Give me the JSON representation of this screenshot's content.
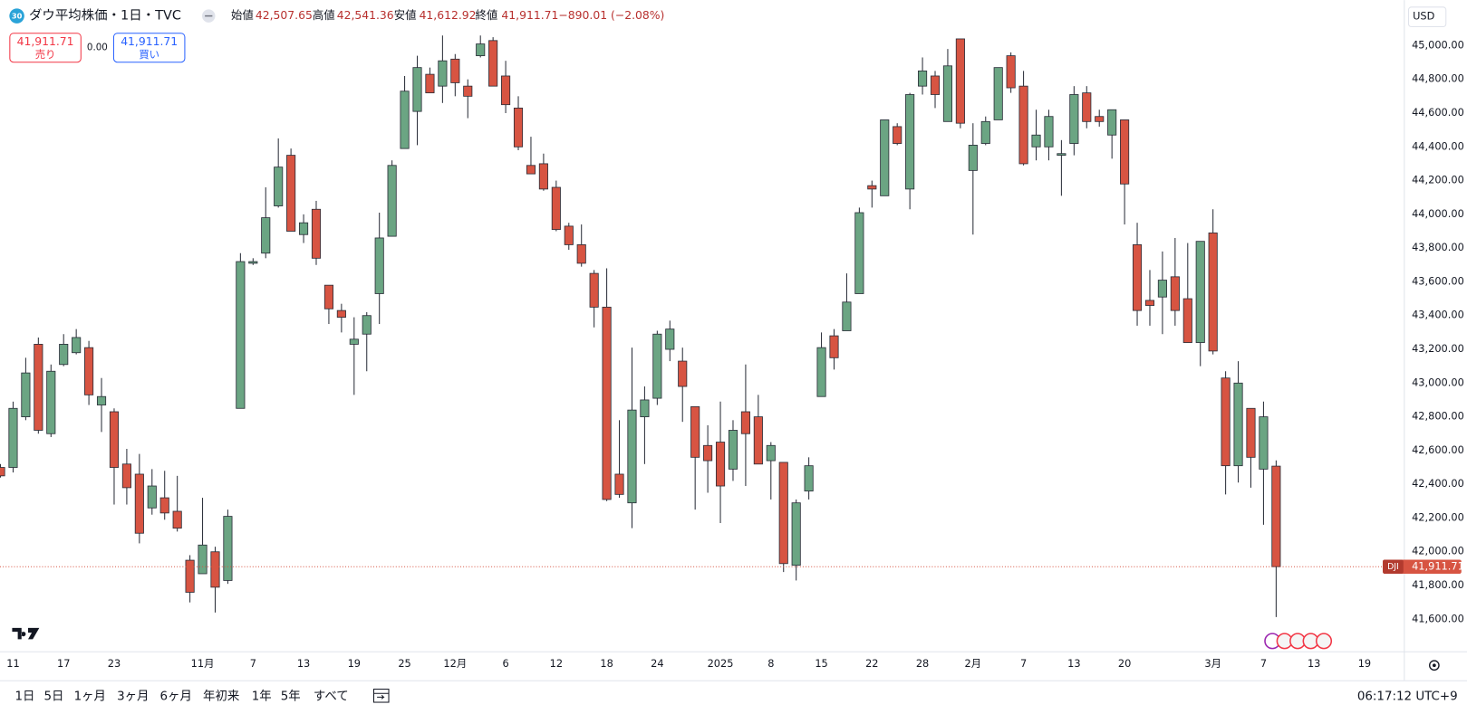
{
  "header": {
    "badge": "30",
    "items": [
      {
        "name": "始値",
        "label": "42,507.65"
      },
      {
        "name": "高値",
        "label": "42,541.36"
      },
      {
        "name": "安値",
        "label": "41,612.92"
      },
      {
        "name": "終値",
        "label": "41,911.71"
      }
    ],
    "change": "−890.01 (−2.08%)"
  },
  "order_panel": {
    "sell_price": "41,911.71",
    "sell": "売り",
    "spread": "0.00",
    "buy_price": "41,911.71",
    "buy": "買い"
  },
  "toolbar": {
    "ranges": [
      "1日",
      "5日",
      "1ヶ月",
      "3ヶ月",
      "6ヶ月",
      "年初来",
      "1年",
      "5年",
      "すべて"
    ],
    "clock": "06:17:12 UTC+9"
  },
  "chart_data": {
    "type": "candlestick",
    "title": "ダウ平均株価・1日・TVC",
    "currency": "USD",
    "up_color": "#6ba583",
    "down_color": "#d75442",
    "categories": [
      null,
      "11",
      null,
      null,
      null,
      "17",
      null,
      null,
      null,
      "23",
      null,
      null,
      null,
      null,
      null,
      null,
      "11月",
      null,
      null,
      null,
      "7",
      null,
      null,
      null,
      "13",
      null,
      null,
      null,
      "19",
      null,
      null,
      null,
      "25",
      null,
      null,
      null,
      "12月",
      null,
      null,
      null,
      "6",
      null,
      null,
      null,
      "12",
      null,
      null,
      null,
      "18",
      null,
      null,
      null,
      "24",
      null,
      null,
      null,
      null,
      "2025",
      null,
      null,
      null,
      "8",
      null,
      null,
      null,
      "15",
      null,
      null,
      null,
      "22",
      null,
      null,
      null,
      "28",
      null,
      null,
      null,
      "2月",
      null,
      null,
      null,
      "7",
      null,
      null,
      null,
      "13",
      null,
      null,
      null,
      "20",
      null,
      null,
      null,
      null,
      null,
      null,
      "3月",
      null,
      null,
      null,
      "7",
      null,
      null,
      null,
      "13",
      null,
      null,
      null,
      "19"
    ],
    "open": [
      42500,
      42500,
      42800,
      43230,
      42700,
      43110,
      43180,
      43210,
      42870,
      42830,
      42520,
      42460,
      42260,
      42320,
      42240,
      41950,
      41870,
      42000,
      41830,
      42850,
      43710,
      43770,
      44050,
      44350,
      43880,
      44030,
      43580,
      43430,
      43230,
      43290,
      43530,
      43870,
      44390,
      44610,
      44830,
      44760,
      44920,
      44760,
      44940,
      45030,
      44820,
      44630,
      44290,
      44300,
      44160,
      43930,
      43820,
      43650,
      43450,
      42460,
      42290,
      42800,
      42910,
      43200,
      43130,
      42860,
      42630,
      42650,
      42490,
      42830,
      42800,
      42540,
      42530,
      41920,
      42360,
      42920,
      43280,
      43310,
      43530,
      44170,
      44110,
      44520,
      44150,
      44760,
      44820,
      44550,
      45040,
      44260,
      44420,
      44560,
      44940,
      44760,
      44400,
      44400,
      44350,
      44420,
      44720,
      44580,
      44470,
      44560,
      43820,
      43490,
      43510,
      43630,
      43500,
      43240,
      43890,
      43030,
      42510,
      42850,
      42490,
      42507.65,
      null,
      null,
      null,
      null,
      null,
      null,
      null
    ],
    "high": [
      42520,
      42890,
      43150,
      43270,
      43110,
      43290,
      43320,
      43250,
      43030,
      42850,
      42610,
      42580,
      42490,
      42480,
      42450,
      41980,
      42320,
      42030,
      42250,
      43770,
      43740,
      44160,
      44450,
      44390,
      44000,
      44080,
      43580,
      43470,
      43390,
      43420,
      44010,
      44320,
      44820,
      44940,
      44870,
      45060,
      44950,
      44800,
      45060,
      45050,
      44910,
      44700,
      44460,
      44360,
      44200,
      43950,
      43940,
      43670,
      43680,
      42780,
      43210,
      42980,
      43310,
      43370,
      43210,
      42860,
      42750,
      42890,
      42780,
      43110,
      42930,
      42650,
      42530,
      42310,
      42560,
      43300,
      43320,
      43650,
      44040,
      44200,
      44560,
      44540,
      44720,
      44930,
      44850,
      44980,
      45040,
      44540,
      44580,
      44870,
      44960,
      44850,
      44620,
      44620,
      44440,
      44760,
      44760,
      44620,
      44620,
      44560,
      43950,
      43670,
      43780,
      43860,
      43830,
      43840,
      44030,
      43070,
      43130,
      42850,
      42890,
      42541.36,
      null,
      null,
      null,
      null,
      null,
      null,
      null
    ],
    "low": [
      42440,
      42470,
      42780,
      42700,
      42680,
      43100,
      43170,
      42870,
      42710,
      42280,
      42280,
      42050,
      42220,
      42190,
      42120,
      41700,
      41870,
      41640,
      41810,
      42850,
      43700,
      43740,
      44040,
      43900,
      43830,
      43700,
      43350,
      43300,
      42930,
      43070,
      43350,
      43870,
      44390,
      44410,
      44720,
      44660,
      44700,
      44570,
      44930,
      44760,
      44600,
      44380,
      44240,
      44140,
      43900,
      43790,
      43690,
      43330,
      42300,
      42320,
      42140,
      42520,
      42870,
      43130,
      42770,
      42250,
      42350,
      42170,
      42420,
      42390,
      42520,
      42310,
      41880,
      41830,
      42310,
      42920,
      43080,
      43310,
      43530,
      44040,
      44110,
      44410,
      44030,
      44710,
      44630,
      44550,
      44510,
      43880,
      44410,
      44560,
      44720,
      44290,
      44320,
      44320,
      44110,
      44350,
      44510,
      44520,
      44330,
      43940,
      43340,
      43340,
      43290,
      43340,
      43240,
      43100,
      43170,
      42340,
      42410,
      42380,
      42160,
      41612.92,
      null,
      null,
      null,
      null,
      null,
      null,
      null
    ],
    "close": [
      42450,
      42850,
      43060,
      42720,
      43070,
      43230,
      43270,
      42930,
      42920,
      42500,
      42380,
      42110,
      42390,
      42230,
      42140,
      41760,
      42040,
      41790,
      42210,
      43720,
      43720,
      43980,
      44280,
      43900,
      43950,
      43740,
      43440,
      43390,
      43260,
      43400,
      43860,
      44290,
      44730,
      44870,
      44720,
      44910,
      44780,
      44700,
      45010,
      44760,
      44650,
      44400,
      44240,
      44150,
      43910,
      43820,
      43710,
      43450,
      42310,
      42340,
      42840,
      42900,
      43290,
      43320,
      42980,
      42560,
      42540,
      42390,
      42720,
      42700,
      42520,
      42630,
      41930,
      42290,
      42510,
      43210,
      43150,
      43480,
      44010,
      44150,
      44560,
      44420,
      44710,
      44850,
      44710,
      44880,
      44540,
      44410,
      44550,
      44870,
      44750,
      44300,
      44470,
      44580,
      44360,
      44710,
      44550,
      44550,
      44620,
      44180,
      43430,
      43460,
      43610,
      43430,
      43240,
      43840,
      43190,
      42510,
      43000,
      42560,
      42800,
      41911.71,
      null,
      null,
      null,
      null,
      null,
      null,
      null
    ],
    "last_price": {
      "symbol": "DJI",
      "value": 41911.71,
      "label": "41,911.71"
    },
    "ylim": [
      41410,
      45270
    ],
    "yticks": [
      {
        "value": 41600,
        "label": "41,600.00"
      },
      {
        "value": 41800,
        "label": "41,800.00"
      },
      {
        "value": 42000,
        "label": "42,000.00"
      },
      {
        "value": 42200,
        "label": "42,200.00"
      },
      {
        "value": 42400,
        "label": "42,400.00"
      },
      {
        "value": 42600,
        "label": "42,600.00"
      },
      {
        "value": 42800,
        "label": "42,800.00"
      },
      {
        "value": 43000,
        "label": "43,000.00"
      },
      {
        "value": 43200,
        "label": "43,200.00"
      },
      {
        "value": 43400,
        "label": "43,400.00"
      },
      {
        "value": 43600,
        "label": "43,600.00"
      },
      {
        "value": 43800,
        "label": "43,800.00"
      },
      {
        "value": 44000,
        "label": "44,000.00"
      },
      {
        "value": 44200,
        "label": "44,200.00"
      },
      {
        "value": 44400,
        "label": "44,400.00"
      },
      {
        "value": 44600,
        "label": "44,600.00"
      },
      {
        "value": 44800,
        "label": "44,800.00"
      },
      {
        "value": 45000,
        "label": "45,000.00"
      }
    ],
    "grid": false
  }
}
